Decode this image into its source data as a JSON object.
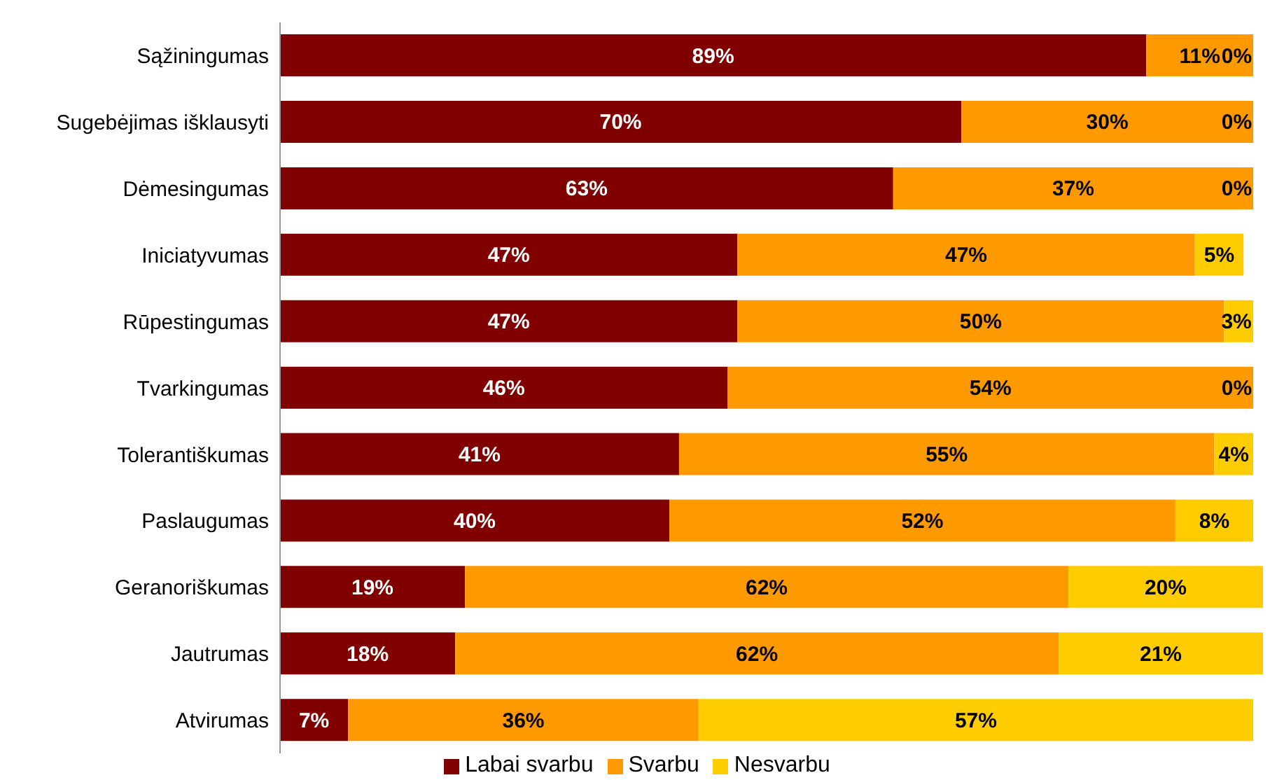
{
  "chart_data": {
    "type": "bar",
    "orientation": "horizontal",
    "stacked": true,
    "legend": "bottom",
    "tick_labels": "y",
    "categories": [
      "Sąžiningumas",
      "Sugebėjimas išklausyti",
      "Dėmesingumas",
      "Iniciatyvumas",
      "Rūpestingumas",
      "Tvarkingumas",
      "Tolerantiškumas",
      "Paslaugumas",
      "Geranoriškumas",
      "Jautrumas",
      "Atvirumas"
    ],
    "series": [
      {
        "name": "Labai svarbu",
        "color": "#800000",
        "values": [
          89,
          70,
          63,
          47,
          47,
          46,
          41,
          40,
          19,
          18,
          7
        ],
        "value_labels": [
          "89%",
          "70%",
          "63%",
          "47%",
          "47%",
          "46%",
          "41%",
          "40%",
          "19%",
          "18%",
          "7%"
        ]
      },
      {
        "name": "Svarbu",
        "color": "#ff9900",
        "values": [
          11,
          30,
          37,
          47,
          50,
          54,
          55,
          52,
          62,
          62,
          36
        ],
        "value_labels": [
          "11%",
          "30%",
          "37%",
          "47%",
          "50%",
          "54%",
          "55%",
          "52%",
          "62%",
          "62%",
          "36%"
        ]
      },
      {
        "name": "Nesvarbu",
        "color": "#ffcc00",
        "values": [
          0,
          0,
          0,
          5,
          3,
          0,
          4,
          8,
          20,
          21,
          57
        ],
        "value_labels": [
          "0%",
          "0%",
          "0%",
          "5%",
          "3%",
          "0%",
          "4%",
          "8%",
          "20%",
          "21%",
          "57%"
        ]
      }
    ]
  }
}
